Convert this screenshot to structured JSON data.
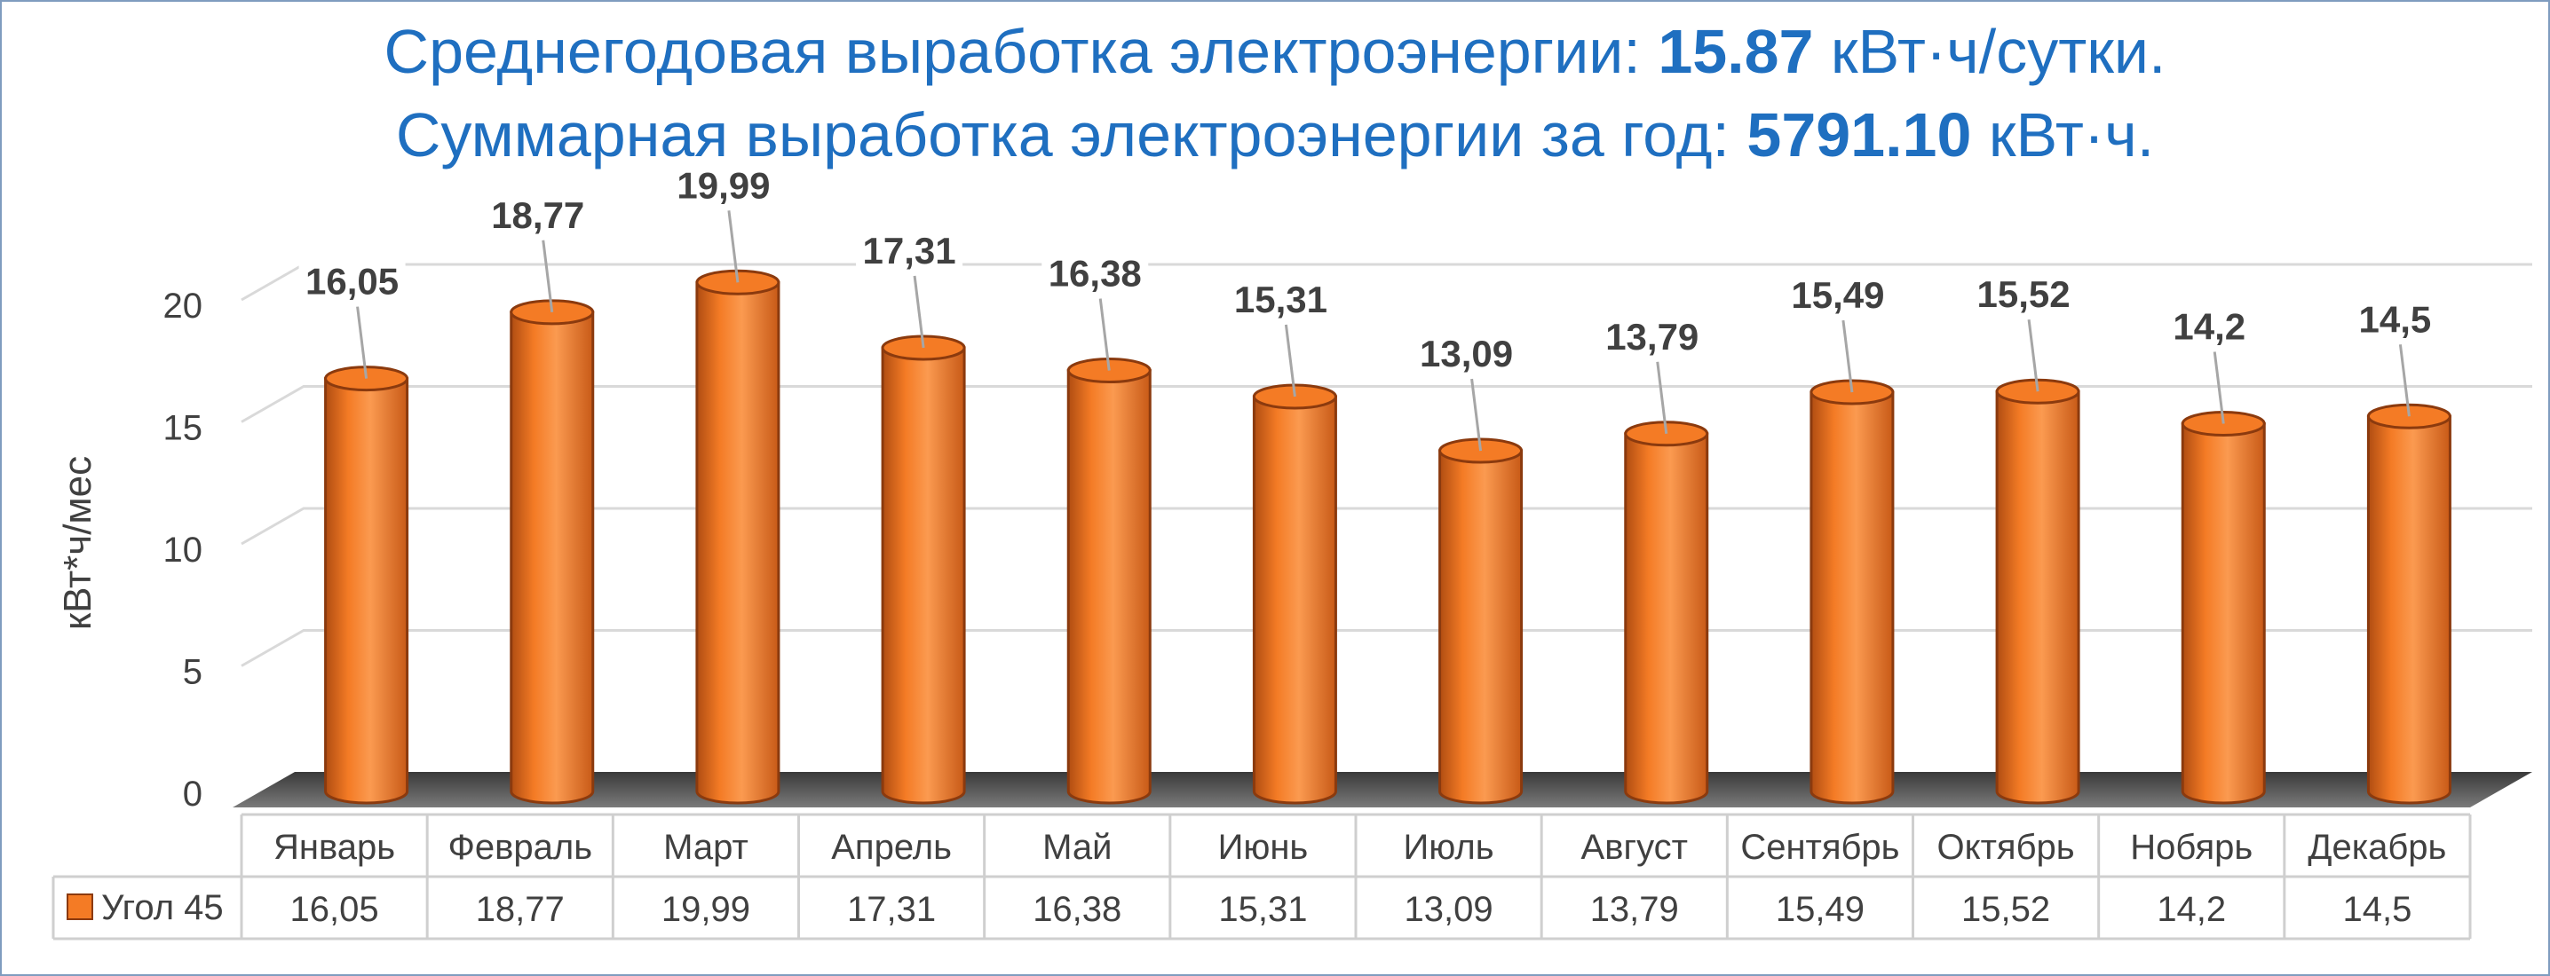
{
  "title": {
    "line1_prefix": "Среднегодовая выработка электроэнергии: ",
    "line1_value": "15.87",
    "line1_suffix": " кВт·ч/сутки.",
    "line2_prefix": "Суммарная выработка электроэнергии за год: ",
    "line2_value": "5791.10",
    "line2_suffix": " кВт·ч."
  },
  "colors": {
    "title": "#1f6fc0",
    "bar": "#f47b25",
    "bar_dark": "#8b3a0e",
    "grid": "#d9d9d9",
    "text": "#404040"
  },
  "chart_data": {
    "type": "bar",
    "ylabel": "кВт*ч/мес",
    "ylim": [
      0,
      20
    ],
    "yticks": [
      "0",
      "5",
      "10",
      "15",
      "20"
    ],
    "grid": true,
    "categories": [
      "Январь",
      "Февраль",
      "Март",
      "Апрель",
      "Май",
      "Июнь",
      "Июль",
      "Август",
      "Сентябрь",
      "Октябрь",
      "Нобярь",
      "Декабрь"
    ],
    "series": [
      {
        "name": "Угол 45",
        "values": [
          16.05,
          18.77,
          19.99,
          17.31,
          16.38,
          15.31,
          13.09,
          13.79,
          15.49,
          15.52,
          14.2,
          14.5
        ],
        "labels": [
          "16,05",
          "18,77",
          "19,99",
          "17,31",
          "16,38",
          "15,31",
          "13,09",
          "13,79",
          "15,49",
          "15,52",
          "14,2",
          "14,5"
        ]
      }
    ]
  }
}
